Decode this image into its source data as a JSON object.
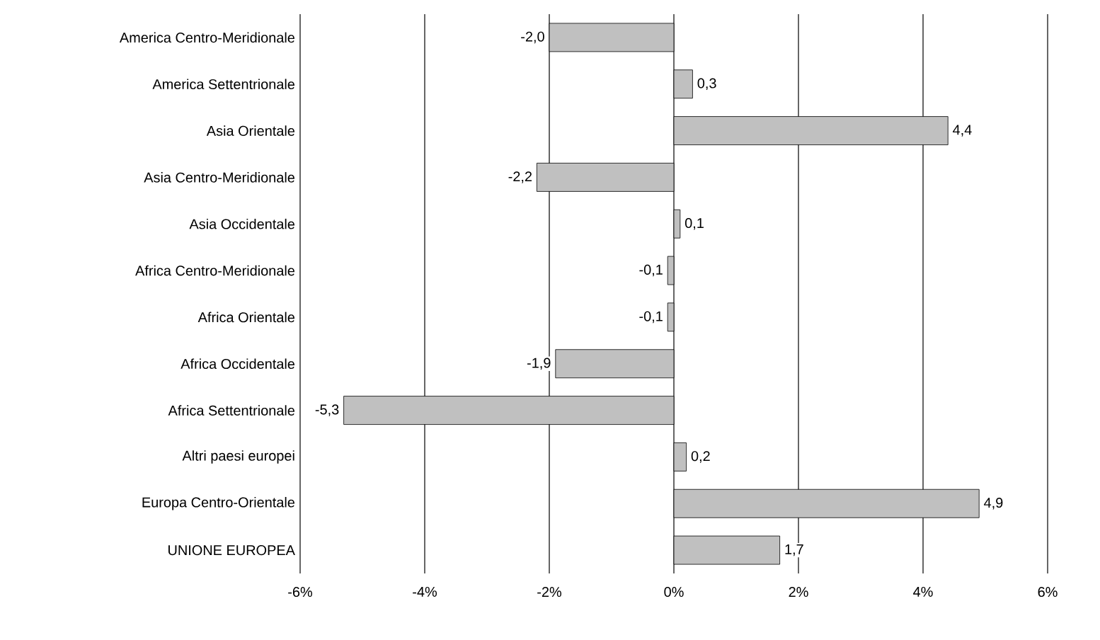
{
  "chart_data": {
    "type": "bar",
    "orientation": "horizontal",
    "categories": [
      "America Centro-Meridionale",
      "America Settentrionale",
      "Asia Orientale",
      "Asia Centro-Meridionale",
      "Asia Occidentale",
      "Africa Centro-Meridionale",
      "Africa Orientale",
      "Africa Occidentale",
      "Africa Settentrionale",
      "Altri paesi europei",
      "Europa Centro-Orientale",
      "UNIONE EUROPEA"
    ],
    "values": [
      -2.0,
      0.3,
      4.4,
      -2.2,
      0.1,
      -0.1,
      -0.1,
      -1.9,
      -5.3,
      0.2,
      4.9,
      1.7
    ],
    "value_labels": [
      "-2,0",
      "0,3",
      "4,4",
      "-2,2",
      "0,1",
      "-0,1",
      "-0,1",
      "-1,9",
      "-5,3",
      "0,2",
      "4,9",
      "1,7"
    ],
    "color": "#c0c0c0",
    "xlim": [
      -6,
      6
    ],
    "xticks": [
      {
        "value": -6,
        "label": "-6%"
      },
      {
        "value": -4,
        "label": "-4%"
      },
      {
        "value": -2,
        "label": "-2%"
      },
      {
        "value": 0,
        "label": "0%"
      },
      {
        "value": 2,
        "label": "2%"
      },
      {
        "value": 4,
        "label": "4%"
      },
      {
        "value": 6,
        "label": "6%"
      }
    ],
    "grid": "x"
  }
}
